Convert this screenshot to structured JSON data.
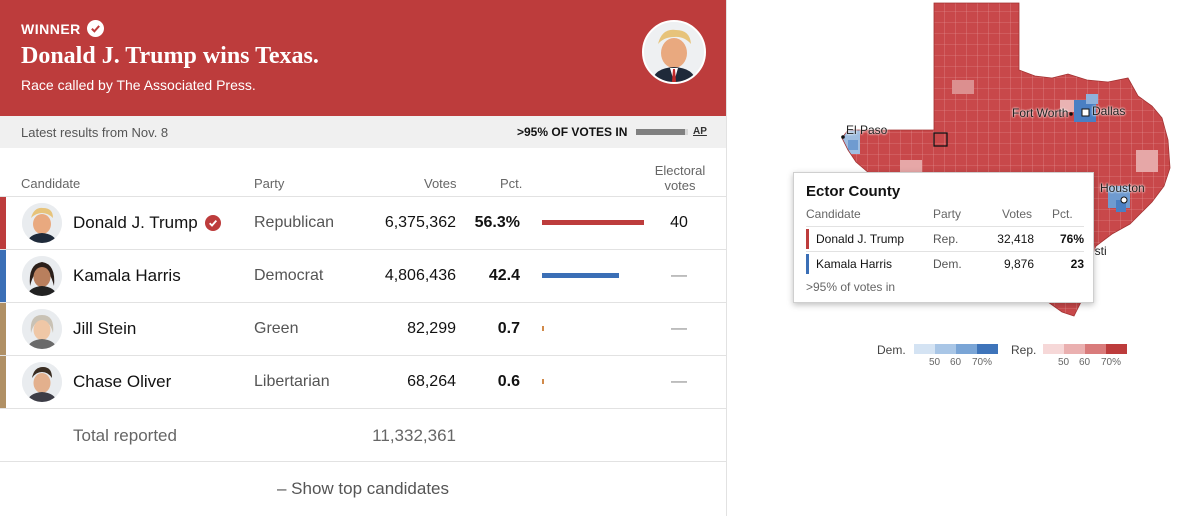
{
  "banner": {
    "winner_label": "WINNER",
    "headline": "Donald J. Trump wins Texas.",
    "subhead": "Race called by The Associated Press."
  },
  "status": {
    "latest": "Latest results from Nov. 8",
    "votes_in": ">95% OF VOTES IN",
    "progress_fraction": 0.95,
    "source": "AP"
  },
  "columns": {
    "candidate": "Candidate",
    "party": "Party",
    "votes": "Votes",
    "pct": "Pct.",
    "electoral_line1": "Electoral",
    "electoral_line2": "votes"
  },
  "candidates": [
    {
      "name": "Donald J. Trump",
      "party": "Republican",
      "votes": "6,375,362",
      "pct": "56.3%",
      "pct_value": 56.3,
      "electoral": "40",
      "color": "#bd3c3c",
      "stripe": "#bd3c3c",
      "winner": true
    },
    {
      "name": "Kamala Harris",
      "party": "Democrat",
      "votes": "4,806,436",
      "pct": "42.4",
      "pct_value": 42.4,
      "electoral": "—",
      "color": "#3b6fb6",
      "stripe": "#3b6fb6",
      "winner": false
    },
    {
      "name": "Jill Stein",
      "party": "Green",
      "votes": "82,299",
      "pct": "0.7",
      "pct_value": 0.7,
      "electoral": "—",
      "color": "#d18a4a",
      "stripe": "#b09065",
      "winner": false
    },
    {
      "name": "Chase Oliver",
      "party": "Libertarian",
      "votes": "68,264",
      "pct": "0.6",
      "pct_value": 0.6,
      "electoral": "—",
      "color": "#d18a4a",
      "stripe": "#b09065",
      "winner": false
    }
  ],
  "total": {
    "label": "Total reported",
    "votes": "11,332,361"
  },
  "show_button": "– Show top candidates",
  "map": {
    "cities": [
      "El Paso",
      "Fort Worth",
      "Dallas",
      "Houston",
      "isti"
    ],
    "tooltip": {
      "county": "Ector County",
      "headers": {
        "candidate": "Candidate",
        "party": "Party",
        "votes": "Votes",
        "pct": "Pct."
      },
      "rows": [
        {
          "name": "Donald J. Trump",
          "party": "Rep.",
          "votes": "32,418",
          "pct": "76%",
          "color": "#bd3c3c"
        },
        {
          "name": "Kamala Harris",
          "party": "Dem.",
          "votes": "9,876",
          "pct": "23",
          "color": "#3b6fb6"
        }
      ],
      "footer": ">95% of votes in"
    },
    "legend": {
      "dem_label": "Dem.",
      "rep_label": "Rep.",
      "ticks": [
        "50",
        "60",
        "70%"
      ],
      "dem_colors": [
        "#d4e3f3",
        "#a9c6e6",
        "#7aa5d6",
        "#3e74ba"
      ],
      "rep_colors": [
        "#f6d8d8",
        "#eab0b0",
        "#d97b7b",
        "#bd3c3c"
      ]
    }
  }
}
